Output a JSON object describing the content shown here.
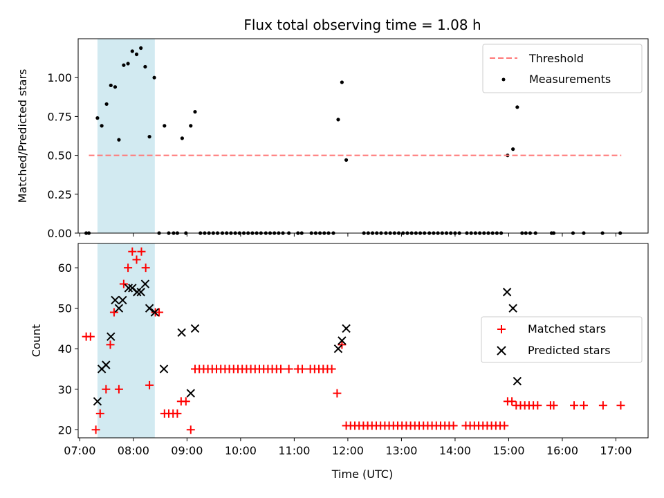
{
  "chart_data": {
    "title": "Flux total observing time = 1.08 h",
    "xlabel": "Time (UTC)",
    "x_ticks": [
      "07:00",
      "08:00",
      "09:00",
      "10:00",
      "11:00",
      "12:00",
      "13:00",
      "14:00",
      "15:00",
      "16:00",
      "17:00"
    ],
    "x_tick_hours": [
      7,
      8,
      9,
      10,
      11,
      12,
      13,
      14,
      15,
      16,
      17
    ],
    "xlim_hours": [
      6.97,
      17.6
    ],
    "highlight_span_hours": [
      7.33,
      8.4
    ],
    "colors": {
      "highlight": "#add8e6",
      "threshold": "#ff7777",
      "matched": "#ff0000",
      "predicted": "#000000",
      "measurements": "#000000"
    },
    "panels": [
      {
        "type": "scatter",
        "ylabel": "Matched/Predicted stars",
        "ylim": [
          0,
          1.25
        ],
        "yticks": [
          "0.00",
          "0.25",
          "0.50",
          "0.75",
          "1.00"
        ],
        "ytick_values": [
          0,
          0.25,
          0.5,
          0.75,
          1.0
        ],
        "threshold": {
          "label": "Threshold",
          "value": 0.5,
          "x_range": [
            7.17,
            17.1
          ]
        },
        "legend": [
          "Threshold",
          "Measurements"
        ],
        "series": [
          {
            "name": "Measurements",
            "points": [
              [
                7.12,
                0
              ],
              [
                7.17,
                0
              ],
              [
                7.33,
                0.74
              ],
              [
                7.41,
                0.69
              ],
              [
                7.5,
                0.83
              ],
              [
                7.58,
                0.95
              ],
              [
                7.66,
                0.94
              ],
              [
                7.73,
                0.6
              ],
              [
                7.82,
                1.08
              ],
              [
                7.9,
                1.09
              ],
              [
                7.98,
                1.17
              ],
              [
                8.06,
                1.15
              ],
              [
                8.14,
                1.19
              ],
              [
                8.22,
                1.07
              ],
              [
                8.3,
                0.62
              ],
              [
                8.39,
                1.0
              ],
              [
                8.48,
                0
              ],
              [
                8.58,
                0.69
              ],
              [
                8.66,
                0
              ],
              [
                8.75,
                0
              ],
              [
                8.82,
                0
              ],
              [
                8.91,
                0.61
              ],
              [
                8.98,
                0
              ],
              [
                9.07,
                0.69
              ],
              [
                9.15,
                0.78
              ],
              [
                9.25,
                0
              ],
              [
                9.33,
                0
              ],
              [
                9.41,
                0
              ],
              [
                9.49,
                0
              ],
              [
                9.57,
                0
              ],
              [
                9.66,
                0
              ],
              [
                9.74,
                0
              ],
              [
                9.82,
                0
              ],
              [
                9.9,
                0
              ],
              [
                9.98,
                0
              ],
              [
                10.06,
                0
              ],
              [
                10.14,
                0
              ],
              [
                10.22,
                0
              ],
              [
                10.3,
                0
              ],
              [
                10.38,
                0
              ],
              [
                10.47,
                0
              ],
              [
                10.55,
                0
              ],
              [
                10.63,
                0
              ],
              [
                10.71,
                0
              ],
              [
                10.79,
                0
              ],
              [
                10.9,
                0
              ],
              [
                11.07,
                0
              ],
              [
                11.14,
                0
              ],
              [
                11.32,
                0
              ],
              [
                11.4,
                0
              ],
              [
                11.48,
                0
              ],
              [
                11.56,
                0
              ],
              [
                11.64,
                0
              ],
              [
                11.73,
                0
              ],
              [
                11.82,
                0.73
              ],
              [
                11.89,
                0.97
              ],
              [
                11.97,
                0.47
              ],
              [
                12.3,
                0
              ],
              [
                12.38,
                0
              ],
              [
                12.46,
                0
              ],
              [
                12.54,
                0
              ],
              [
                12.62,
                0
              ],
              [
                12.71,
                0
              ],
              [
                12.79,
                0
              ],
              [
                12.87,
                0
              ],
              [
                12.95,
                0
              ],
              [
                13.03,
                0
              ],
              [
                13.11,
                0
              ],
              [
                13.19,
                0
              ],
              [
                13.27,
                0
              ],
              [
                13.35,
                0
              ],
              [
                13.43,
                0
              ],
              [
                13.52,
                0
              ],
              [
                13.6,
                0
              ],
              [
                13.68,
                0
              ],
              [
                13.76,
                0
              ],
              [
                13.84,
                0
              ],
              [
                13.92,
                0
              ],
              [
                14.0,
                0
              ],
              [
                14.08,
                0
              ],
              [
                14.22,
                0
              ],
              [
                14.3,
                0
              ],
              [
                14.38,
                0
              ],
              [
                14.46,
                0
              ],
              [
                14.54,
                0
              ],
              [
                14.62,
                0
              ],
              [
                14.7,
                0
              ],
              [
                14.78,
                0
              ],
              [
                14.86,
                0
              ],
              [
                14.98,
                0.5
              ],
              [
                15.08,
                0.54
              ],
              [
                15.16,
                0.81
              ],
              [
                15.25,
                0
              ],
              [
                15.32,
                0
              ],
              [
                15.4,
                0
              ],
              [
                15.5,
                0
              ],
              [
                15.8,
                0
              ],
              [
                15.84,
                0
              ],
              [
                16.2,
                0
              ],
              [
                16.4,
                0
              ],
              [
                16.75,
                0
              ],
              [
                17.08,
                0
              ]
            ]
          }
        ]
      },
      {
        "type": "scatter",
        "ylabel": "Count",
        "ylim": [
          18,
          66
        ],
        "yticks": [
          "20",
          "30",
          "40",
          "50",
          "60"
        ],
        "ytick_values": [
          20,
          30,
          40,
          50,
          60
        ],
        "legend": [
          "Matched stars",
          "Predicted stars"
        ],
        "series": [
          {
            "name": "Matched stars",
            "marker": "+",
            "points": [
              [
                7.12,
                43
              ],
              [
                7.2,
                43
              ],
              [
                7.3,
                20
              ],
              [
                7.38,
                24
              ],
              [
                7.49,
                30
              ],
              [
                7.57,
                41
              ],
              [
                7.64,
                49
              ],
              [
                7.73,
                30
              ],
              [
                7.82,
                56
              ],
              [
                7.9,
                60
              ],
              [
                7.98,
                64
              ],
              [
                8.06,
                62
              ],
              [
                8.15,
                64
              ],
              [
                8.23,
                60
              ],
              [
                8.3,
                31
              ],
              [
                8.41,
                49
              ],
              [
                8.48,
                49
              ],
              [
                8.58,
                24
              ],
              [
                8.66,
                24
              ],
              [
                8.74,
                24
              ],
              [
                8.82,
                24
              ],
              [
                8.89,
                27
              ],
              [
                8.98,
                27
              ],
              [
                9.07,
                20
              ],
              [
                9.15,
                35
              ],
              [
                9.23,
                35
              ],
              [
                9.31,
                35
              ],
              [
                9.39,
                35
              ],
              [
                9.47,
                35
              ],
              [
                9.55,
                35
              ],
              [
                9.63,
                35
              ],
              [
                9.71,
                35
              ],
              [
                9.79,
                35
              ],
              [
                9.87,
                35
              ],
              [
                9.95,
                35
              ],
              [
                10.03,
                35
              ],
              [
                10.11,
                35
              ],
              [
                10.19,
                35
              ],
              [
                10.27,
                35
              ],
              [
                10.35,
                35
              ],
              [
                10.43,
                35
              ],
              [
                10.51,
                35
              ],
              [
                10.59,
                35
              ],
              [
                10.67,
                35
              ],
              [
                10.75,
                35
              ],
              [
                10.9,
                35
              ],
              [
                11.07,
                35
              ],
              [
                11.15,
                35
              ],
              [
                11.3,
                35
              ],
              [
                11.38,
                35
              ],
              [
                11.46,
                35
              ],
              [
                11.54,
                35
              ],
              [
                11.62,
                35
              ],
              [
                11.7,
                35
              ],
              [
                11.8,
                29
              ],
              [
                11.89,
                41
              ],
              [
                11.97,
                21
              ],
              [
                12.05,
                21
              ],
              [
                12.13,
                21
              ],
              [
                12.21,
                21
              ],
              [
                12.29,
                21
              ],
              [
                12.37,
                21
              ],
              [
                12.45,
                21
              ],
              [
                12.53,
                21
              ],
              [
                12.61,
                21
              ],
              [
                12.69,
                21
              ],
              [
                12.77,
                21
              ],
              [
                12.85,
                21
              ],
              [
                12.93,
                21
              ],
              [
                13.01,
                21
              ],
              [
                13.09,
                21
              ],
              [
                13.17,
                21
              ],
              [
                13.25,
                21
              ],
              [
                13.33,
                21
              ],
              [
                13.41,
                21
              ],
              [
                13.49,
                21
              ],
              [
                13.57,
                21
              ],
              [
                13.65,
                21
              ],
              [
                13.73,
                21
              ],
              [
                13.81,
                21
              ],
              [
                13.89,
                21
              ],
              [
                13.97,
                21
              ],
              [
                14.2,
                21
              ],
              [
                14.28,
                21
              ],
              [
                14.36,
                21
              ],
              [
                14.44,
                21
              ],
              [
                14.52,
                21
              ],
              [
                14.6,
                21
              ],
              [
                14.68,
                21
              ],
              [
                14.76,
                21
              ],
              [
                14.84,
                21
              ],
              [
                14.92,
                21
              ],
              [
                14.98,
                27
              ],
              [
                15.06,
                27
              ],
              [
                15.14,
                26
              ],
              [
                15.22,
                26
              ],
              [
                15.3,
                26
              ],
              [
                15.38,
                26
              ],
              [
                15.46,
                26
              ],
              [
                15.54,
                26
              ],
              [
                15.78,
                26
              ],
              [
                15.84,
                26
              ],
              [
                16.22,
                26
              ],
              [
                16.4,
                26
              ],
              [
                16.76,
                26
              ],
              [
                17.09,
                26
              ]
            ]
          },
          {
            "name": "Predicted stars",
            "marker": "x",
            "points": [
              [
                7.33,
                27
              ],
              [
                7.41,
                35
              ],
              [
                7.49,
                36
              ],
              [
                7.58,
                43
              ],
              [
                7.66,
                52
              ],
              [
                7.73,
                50
              ],
              [
                7.8,
                52
              ],
              [
                7.91,
                55
              ],
              [
                7.98,
                55
              ],
              [
                8.07,
                54
              ],
              [
                8.14,
                54
              ],
              [
                8.22,
                56
              ],
              [
                8.3,
                50
              ],
              [
                8.4,
                49
              ],
              [
                8.57,
                35
              ],
              [
                8.9,
                44
              ],
              [
                9.07,
                29
              ],
              [
                9.15,
                45
              ],
              [
                11.82,
                40
              ],
              [
                11.89,
                42
              ],
              [
                11.97,
                45
              ],
              [
                14.97,
                54
              ],
              [
                15.08,
                50
              ],
              [
                15.16,
                32
              ]
            ]
          }
        ]
      }
    ]
  }
}
